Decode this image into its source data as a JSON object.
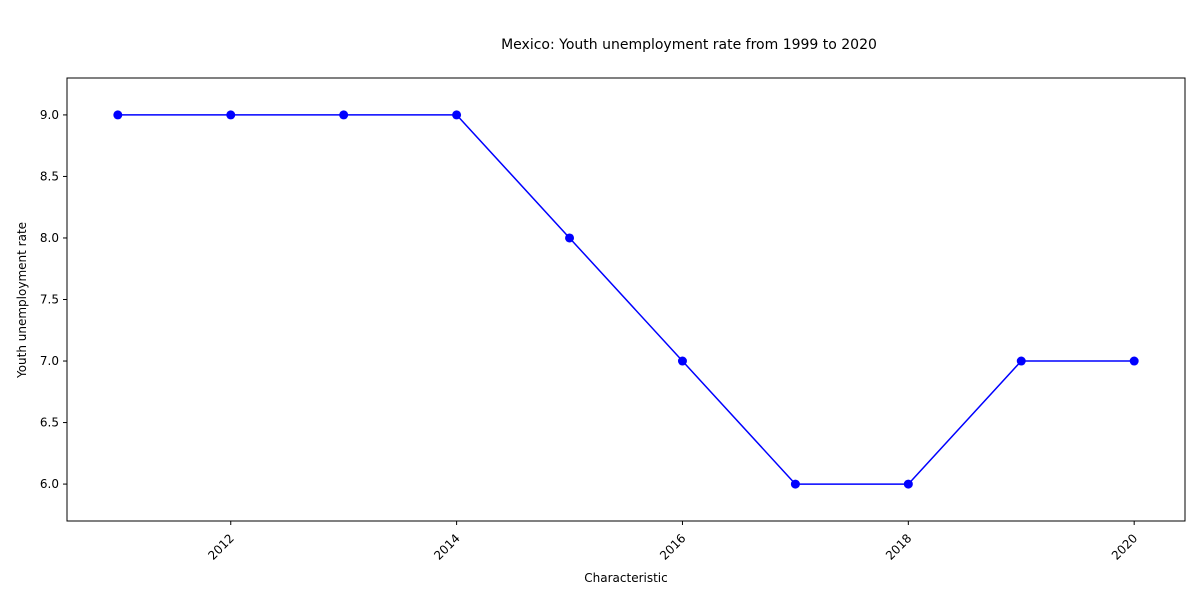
{
  "chart_data": {
    "type": "line",
    "title": "Mexico: Youth unemployment rate from 1999 to 2020",
    "xlabel": "Characteristic",
    "ylabel": "Youth unemployment rate",
    "x": [
      2011,
      2012,
      2013,
      2014,
      2015,
      2016,
      2017,
      2018,
      2019,
      2020
    ],
    "series": [
      {
        "values": [
          9,
          9,
          9,
          9,
          8,
          7,
          6,
          6,
          7,
          7
        ]
      }
    ],
    "xlim": [
      2010.55,
      2020.45
    ],
    "ylim": [
      5.7,
      9.3
    ],
    "xticks": [
      2012,
      2014,
      2016,
      2018,
      2020
    ],
    "yticks": [
      6.0,
      6.5,
      7.0,
      7.5,
      8.0,
      8.5,
      9.0
    ],
    "xtick_labels": [
      "2012",
      "2014",
      "2016",
      "2018",
      "2020"
    ],
    "ytick_labels": [
      "6.0",
      "6.5",
      "7.0",
      "7.5",
      "8.0",
      "8.5",
      "9.0"
    ],
    "line_color": "#0000ff",
    "grid": false,
    "legend": "none"
  }
}
